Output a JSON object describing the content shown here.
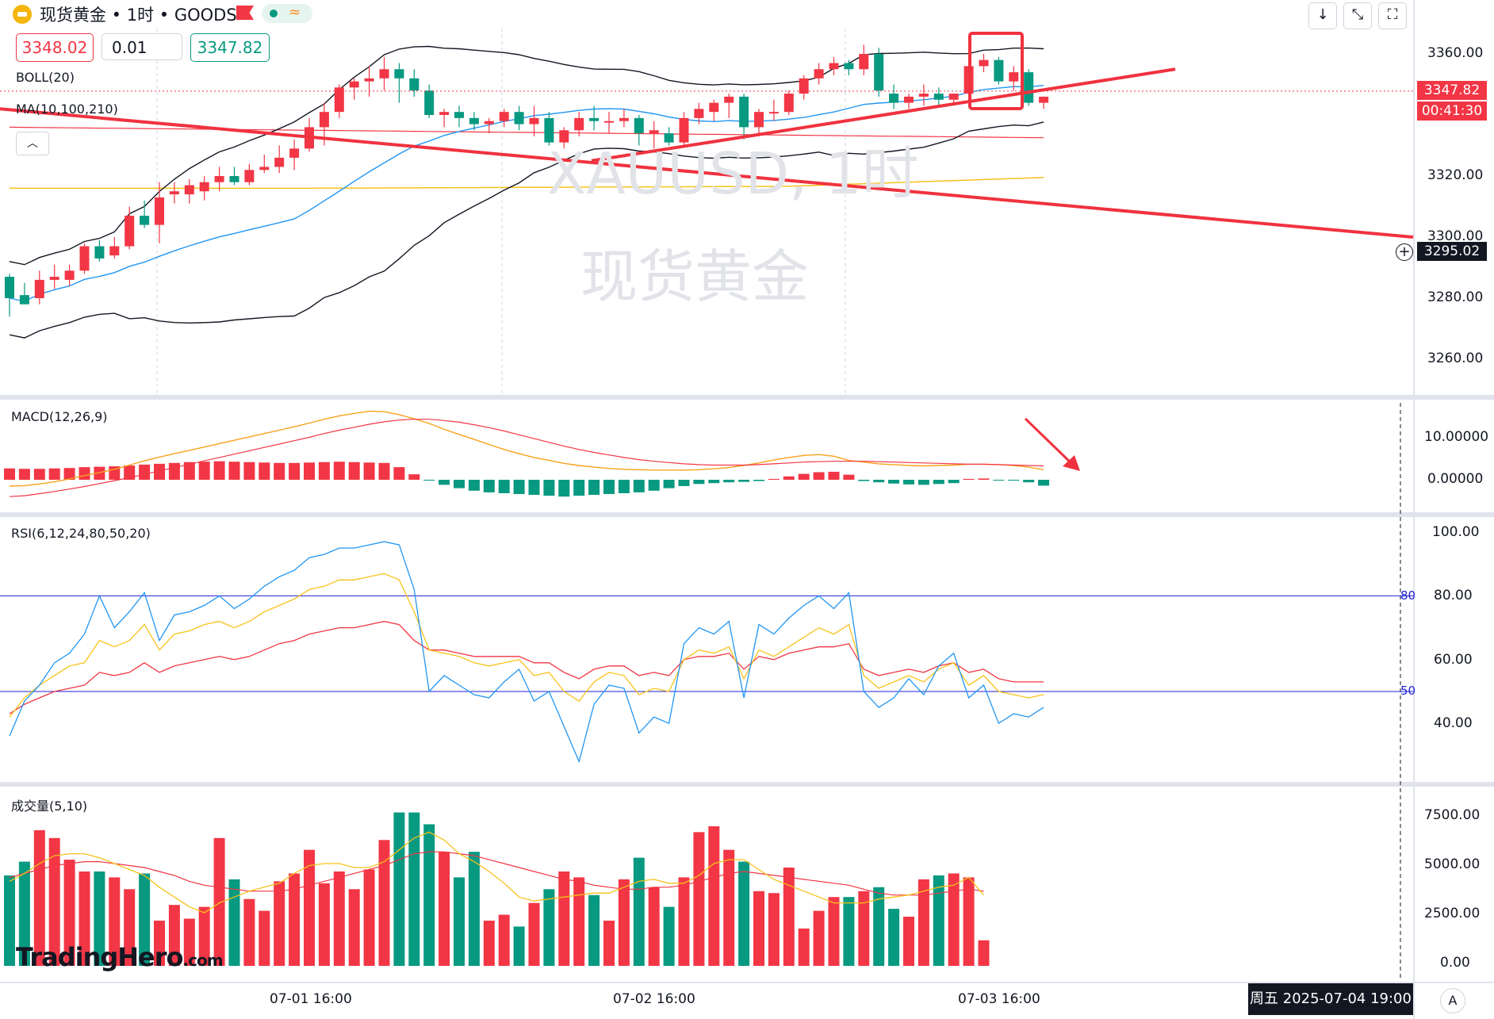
{
  "header": {
    "title": "现货黄金 • 1时 • GOODS",
    "sell_price": "3348.02",
    "quantity": "0.01",
    "buy_price": "3347.82",
    "flag_icon": "red-flag-icon",
    "status_icon": "market-open-wave-icon",
    "toolbar_icons": [
      "arrow-down-icon",
      "collapse-icon",
      "fullscreen-icon"
    ]
  },
  "watermark": {
    "symbol": "XAUUSD, 1时",
    "name": "现货黄金"
  },
  "brand": {
    "name": "TradingHero",
    "suffix": ".com"
  },
  "colors": {
    "up": "#f23645",
    "down": "#089981",
    "boll": "#131722",
    "boll_mid": "#2196f3",
    "ma100": "#f23645",
    "ma210": "#f7c21a",
    "macd": "#f7a21b",
    "signal": "#f23645",
    "rsi6": "#2196f3",
    "rsi12": "#f7c21a",
    "rsi24": "#f23645",
    "annotation": "#f0323f",
    "level_line": "#1f1fd8"
  },
  "chart_data": [
    {
      "type": "candlestick",
      "panel": "price",
      "symbol": "XAUUSD",
      "interval": "1时",
      "indicators": [
        "BOLL(20)",
        "MA(10,100,210)"
      ],
      "ylim": [
        3245,
        3372
      ],
      "yticks": [
        "3360.00",
        "3320.00",
        "3300.00",
        "3280.00",
        "3260.00"
      ],
      "xticks": [
        "07-01 16:00",
        "07-02 16:00",
        "07-03 16:00"
      ],
      "current_price": "3347.82",
      "countdown": "00:41:30",
      "crosshair_price": "3295.02",
      "crosshair_time": "周五 2025-07-04  19:00",
      "candles": [
        [
          3287,
          3288,
          3274,
          3280
        ],
        [
          3281,
          3285,
          3278,
          3278
        ],
        [
          3280,
          3289,
          3278,
          3286
        ],
        [
          3286,
          3291,
          3283,
          3287
        ],
        [
          3286,
          3291,
          3284,
          3289
        ],
        [
          3289,
          3298,
          3288,
          3297
        ],
        [
          3297,
          3299,
          3292,
          3293
        ],
        [
          3294,
          3300,
          3293,
          3297
        ],
        [
          3297,
          3310,
          3296,
          3307
        ],
        [
          3307,
          3312,
          3303,
          3304
        ],
        [
          3304,
          3318,
          3298,
          3313
        ],
        [
          3314,
          3318,
          3311,
          3315
        ],
        [
          3314,
          3319,
          3311,
          3317
        ],
        [
          3315,
          3320,
          3312,
          3318
        ],
        [
          3318,
          3323,
          3315,
          3320
        ],
        [
          3320,
          3323,
          3317,
          3318
        ],
        [
          3318,
          3324,
          3317,
          3322
        ],
        [
          3322,
          3327,
          3321,
          3323
        ],
        [
          3323,
          3330,
          3321,
          3326
        ],
        [
          3326,
          3332,
          3322,
          3329
        ],
        [
          3329,
          3339,
          3328,
          3336
        ],
        [
          3336,
          3344,
          3330,
          3341
        ],
        [
          3341,
          3350,
          3339,
          3349
        ],
        [
          3349,
          3352,
          3345,
          3351
        ],
        [
          3351,
          3356,
          3346,
          3352
        ],
        [
          3352,
          3359,
          3348,
          3355
        ],
        [
          3355,
          3357,
          3344,
          3352
        ],
        [
          3352,
          3355,
          3346,
          3348
        ],
        [
          3348,
          3350,
          3339,
          3340
        ],
        [
          3340,
          3342,
          3336,
          3341
        ],
        [
          3341,
          3343,
          3336,
          3339
        ],
        [
          3339,
          3341,
          3335,
          3337
        ],
        [
          3337,
          3339,
          3334,
          3338
        ],
        [
          3338,
          3342,
          3336,
          3341
        ],
        [
          3341,
          3343,
          3335,
          3337
        ],
        [
          3337,
          3343,
          3333,
          3339
        ],
        [
          3339,
          3341,
          3330,
          3331
        ],
        [
          3331,
          3336,
          3329,
          3335
        ],
        [
          3335,
          3341,
          3333,
          3339
        ],
        [
          3339,
          3343,
          3335,
          3338
        ],
        [
          3338,
          3341,
          3334,
          3338
        ],
        [
          3338,
          3342,
          3336,
          3339
        ],
        [
          3339,
          3340,
          3330,
          3334
        ],
        [
          3334,
          3338,
          3329,
          3335
        ],
        [
          3334,
          3336,
          3330,
          3331
        ],
        [
          3331,
          3341,
          3330,
          3339
        ],
        [
          3339,
          3344,
          3337,
          3342
        ],
        [
          3341,
          3345,
          3338,
          3344
        ],
        [
          3344,
          3347,
          3339,
          3346
        ],
        [
          3346,
          3347,
          3332,
          3336
        ],
        [
          3336,
          3342,
          3333,
          3341
        ],
        [
          3341,
          3345,
          3338,
          3341
        ],
        [
          3341,
          3348,
          3340,
          3347
        ],
        [
          3347,
          3353,
          3345,
          3352
        ],
        [
          3352,
          3357,
          3350,
          3355
        ],
        [
          3355,
          3359,
          3353,
          3357
        ],
        [
          3357,
          3358,
          3353,
          3355
        ],
        [
          3355,
          3363,
          3353,
          3360
        ],
        [
          3360,
          3362,
          3346,
          3348
        ],
        [
          3347,
          3350,
          3342,
          3344
        ],
        [
          3344,
          3347,
          3342,
          3346
        ],
        [
          3346,
          3350,
          3343,
          3347
        ],
        [
          3347,
          3349,
          3343,
          3345
        ],
        [
          3345,
          3347,
          3343,
          3347
        ],
        [
          3347,
          3358,
          3346,
          3356
        ],
        [
          3356,
          3360,
          3354,
          3358
        ],
        [
          3358,
          3359,
          3350,
          3351
        ],
        [
          3351,
          3356,
          3348,
          3354
        ],
        [
          3354,
          3355,
          3343,
          3344
        ],
        [
          3344,
          3346,
          3342,
          3346
        ]
      ]
    },
    {
      "type": "bar+line",
      "panel": "macd",
      "title": "MACD(12,26,9)",
      "yticks": [
        "10.00000",
        "0.00000"
      ],
      "histogram": [
        2.7,
        2.6,
        2.6,
        2.7,
        2.8,
        3.0,
        3.1,
        3.2,
        3.4,
        3.6,
        3.8,
        4.0,
        4.2,
        4.3,
        4.4,
        4.3,
        4.2,
        4.1,
        4.0,
        4.0,
        4.1,
        4.2,
        4.3,
        4.2,
        4.1,
        4.0,
        3.0,
        1.3,
        -0.2,
        -1.2,
        -2.0,
        -2.6,
        -3.0,
        -3.2,
        -3.4,
        -3.6,
        -3.8,
        -4.0,
        -3.8,
        -3.6,
        -3.4,
        -3.2,
        -3.0,
        -2.6,
        -2.0,
        -1.5,
        -1.0,
        -0.8,
        -0.6,
        -0.5,
        -0.3,
        0.2,
        0.8,
        1.4,
        1.8,
        1.9,
        1.2,
        -0.3,
        -0.6,
        -0.9,
        -1.1,
        -1.2,
        -1.0,
        -0.8,
        0.2,
        0.3,
        -0.1,
        -0.2,
        -0.6,
        -1.4
      ],
      "macd": [
        -1.5,
        -1.4,
        -1.0,
        -0.5,
        0.2,
        1.0,
        1.7,
        2.5,
        3.5,
        4.5,
        5.4,
        6.2,
        7.0,
        7.8,
        8.6,
        9.4,
        10.2,
        11.0,
        11.8,
        12.6,
        13.5,
        14.4,
        15.2,
        15.8,
        16.3,
        16.2,
        15.5,
        14.5,
        13.4,
        12.0,
        10.8,
        9.6,
        8.4,
        7.2,
        6.2,
        5.3,
        4.6,
        3.9,
        3.4,
        3.0,
        2.7,
        2.5,
        2.4,
        2.3,
        2.3,
        2.3,
        2.4,
        2.6,
        2.9,
        3.4,
        4.0,
        4.7,
        5.3,
        5.8,
        6.0,
        5.6,
        4.6,
        4.2,
        3.8,
        3.6,
        3.4,
        3.3,
        3.4,
        3.5,
        3.7,
        3.7,
        3.6,
        3.4,
        3.0,
        2.4
      ],
      "signal": [
        -4.0,
        -3.8,
        -3.3,
        -2.8,
        -2.2,
        -1.6,
        -0.9,
        -0.2,
        0.5,
        1.3,
        2.1,
        2.9,
        3.7,
        4.5,
        5.3,
        6.1,
        6.9,
        7.7,
        8.5,
        9.3,
        10.1,
        11.0,
        11.8,
        12.5,
        13.2,
        13.8,
        14.2,
        14.4,
        14.4,
        14.1,
        13.7,
        13.1,
        12.4,
        11.6,
        10.7,
        9.8,
        8.9,
        8.0,
        7.2,
        6.5,
        5.9,
        5.3,
        4.8,
        4.4,
        4.1,
        3.8,
        3.6,
        3.5,
        3.5,
        3.5,
        3.6,
        3.8,
        4.0,
        4.2,
        4.3,
        4.4,
        4.4,
        4.4,
        4.3,
        4.2,
        4.1,
        4.0,
        3.9,
        3.8,
        3.7,
        3.7,
        3.6,
        3.5,
        3.4,
        3.3
      ]
    },
    {
      "type": "line",
      "panel": "rsi",
      "title": "RSI(6,12,24,80,50,20)",
      "yticks": [
        "100.00",
        "80.00",
        "60.00",
        "40.00"
      ],
      "levels": [
        "80",
        "50"
      ],
      "ylim": [
        20,
        100
      ],
      "rsi6": [
        36,
        47,
        52,
        59,
        62,
        68,
        80,
        70,
        75,
        81,
        66,
        74,
        75,
        77,
        80,
        76,
        79,
        83,
        86,
        88,
        92,
        93,
        95,
        95,
        96,
        97,
        96,
        82,
        50,
        55,
        52,
        49,
        48,
        53,
        57,
        47,
        50,
        39,
        28,
        46,
        52,
        51,
        37,
        42,
        40,
        65,
        70,
        68,
        72,
        48,
        71,
        68,
        73,
        77,
        80,
        76,
        81,
        50,
        45,
        48,
        54,
        49,
        58,
        62,
        48,
        52,
        40,
        43,
        42,
        45
      ],
      "rsi12": [
        42,
        48,
        52,
        55,
        58,
        59,
        66,
        64,
        66,
        71,
        63,
        68,
        69,
        71,
        72,
        70,
        72,
        75,
        77,
        79,
        82,
        83,
        85,
        85,
        86,
        87,
        85,
        75,
        63,
        62,
        61,
        59,
        58,
        59,
        60,
        55,
        56,
        50,
        47,
        53,
        56,
        55,
        49,
        51,
        50,
        60,
        63,
        62,
        64,
        54,
        63,
        61,
        64,
        67,
        70,
        68,
        71,
        55,
        51,
        53,
        55,
        53,
        57,
        59,
        52,
        55,
        50,
        49,
        48,
        49
      ],
      "rsi24": [
        43,
        46,
        48,
        50,
        51,
        52,
        56,
        55,
        56,
        59,
        56,
        58,
        59,
        60,
        61,
        60,
        61,
        63,
        65,
        66,
        68,
        69,
        70,
        70,
        71,
        72,
        71,
        66,
        63,
        63,
        62,
        61,
        61,
        61,
        61,
        59,
        59,
        56,
        54,
        57,
        58,
        58,
        55,
        56,
        55,
        60,
        61,
        61,
        62,
        57,
        61,
        60,
        62,
        63,
        64,
        64,
        65,
        57,
        55,
        56,
        57,
        56,
        58,
        59,
        56,
        57,
        54,
        53,
        53,
        53
      ]
    },
    {
      "type": "bar+line",
      "panel": "volume",
      "title": "成交量(5,10)",
      "yticks": [
        "7500.00",
        "5000.00",
        "2500.00",
        "0.00"
      ],
      "ylim": [
        0,
        8000
      ],
      "volume": [
        4600,
        5300,
        6900,
        6500,
        5400,
        4800,
        4800,
        4500,
        3900,
        4700,
        2300,
        3100,
        2400,
        3000,
        6500,
        4400,
        3400,
        2800,
        4300,
        4700,
        5900,
        4200,
        4800,
        3900,
        4900,
        6400,
        7800,
        7800,
        7200,
        5800,
        4500,
        5800,
        2300,
        2600,
        2000,
        3200,
        3900,
        4800,
        4500,
        3600,
        2300,
        4400,
        5500,
        4000,
        3000,
        4500,
        6800,
        7100,
        5900,
        5300,
        3800,
        3700,
        5000,
        1900,
        2800,
        3500,
        3500,
        3800,
        4000,
        2900,
        2500,
        4400,
        4600,
        4700,
        4500,
        1300,
        0,
        0,
        0,
        0
      ],
      "ma5": [
        4300,
        4700,
        5200,
        5600,
        5700,
        5700,
        5500,
        5200,
        4900,
        4600,
        4000,
        3500,
        3000,
        2700,
        3200,
        3500,
        3800,
        4000,
        4200,
        4700,
        5100,
        5200,
        5200,
        5000,
        5000,
        5300,
        5900,
        6500,
        6800,
        6400,
        5700,
        5300,
        4800,
        4200,
        3500,
        3300,
        3400,
        3500,
        3600,
        3700,
        3700,
        4000,
        4300,
        4400,
        4200,
        4200,
        4600,
        5200,
        5400,
        5400,
        4900,
        4400,
        4100,
        3800,
        3500,
        3200,
        3200,
        3200,
        3400,
        3500,
        3600,
        3800,
        4000,
        4100,
        4500,
        3600,
        0,
        0,
        0,
        0
      ],
      "ma10": [
        4500,
        4700,
        4900,
        5100,
        5200,
        5300,
        5300,
        5200,
        5100,
        5000,
        4800,
        4600,
        4300,
        4100,
        4000,
        3900,
        3800,
        3800,
        3800,
        3900,
        4100,
        4300,
        4500,
        4700,
        4900,
        5100,
        5400,
        5700,
        5800,
        5800,
        5700,
        5600,
        5400,
        5200,
        5000,
        4800,
        4600,
        4400,
        4300,
        4100,
        4000,
        3900,
        3900,
        4000,
        4000,
        4100,
        4300,
        4500,
        4700,
        4800,
        4700,
        4600,
        4500,
        4400,
        4300,
        4200,
        4100,
        3900,
        3700,
        3600,
        3600,
        3600,
        3700,
        3800,
        3900,
        3800,
        0,
        0,
        0,
        0
      ]
    }
  ]
}
